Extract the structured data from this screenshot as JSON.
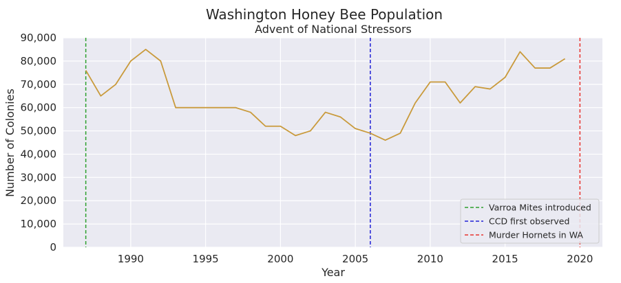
{
  "chart_data": {
    "type": "line",
    "title": "Washington Honey Bee Population",
    "subtitle": "Advent of National Stressors",
    "xlabel": "Year",
    "ylabel": "Number of Colonies",
    "xlim": [
      1985.5,
      2021.5
    ],
    "ylim": [
      0,
      90000
    ],
    "x_ticks": [
      1990,
      1995,
      2000,
      2005,
      2010,
      2015,
      2020
    ],
    "y_ticks": [
      0,
      10000,
      20000,
      30000,
      40000,
      50000,
      60000,
      70000,
      80000,
      90000
    ],
    "y_tick_labels": [
      "0",
      "10,000",
      "20,000",
      "30,000",
      "40,000",
      "50,000",
      "60,000",
      "70,000",
      "80,000",
      "90,000"
    ],
    "grid": true,
    "legend_position": "bottom-right",
    "series": [
      {
        "color": "#c99a3b",
        "x": [
          1987,
          1988,
          1989,
          1990,
          1991,
          1992,
          1993,
          1994,
          1995,
          1996,
          1997,
          1998,
          1999,
          2000,
          2001,
          2002,
          2003,
          2004,
          2005,
          2006,
          2007,
          2008,
          2009,
          2010,
          2011,
          2012,
          2013,
          2014,
          2015,
          2016,
          2017,
          2018,
          2019
        ],
        "values": [
          76000,
          65000,
          70000,
          80000,
          85000,
          80000,
          60000,
          60000,
          60000,
          60000,
          60000,
          58000,
          52000,
          52000,
          48000,
          50000,
          58000,
          56000,
          51000,
          49000,
          46000,
          49000,
          62000,
          71000,
          71000,
          62000,
          69000,
          68000,
          73000,
          84000,
          77000,
          77000,
          81000
        ]
      }
    ],
    "vlines": [
      {
        "x": 1987,
        "label": "Varroa Mites introduced",
        "color": "#2ca02c"
      },
      {
        "x": 2006,
        "label": "CCD first observed",
        "color": "#1f1fd6"
      },
      {
        "x": 2020,
        "label": "Murder Hornets in WA",
        "color": "#e8322d"
      }
    ]
  }
}
